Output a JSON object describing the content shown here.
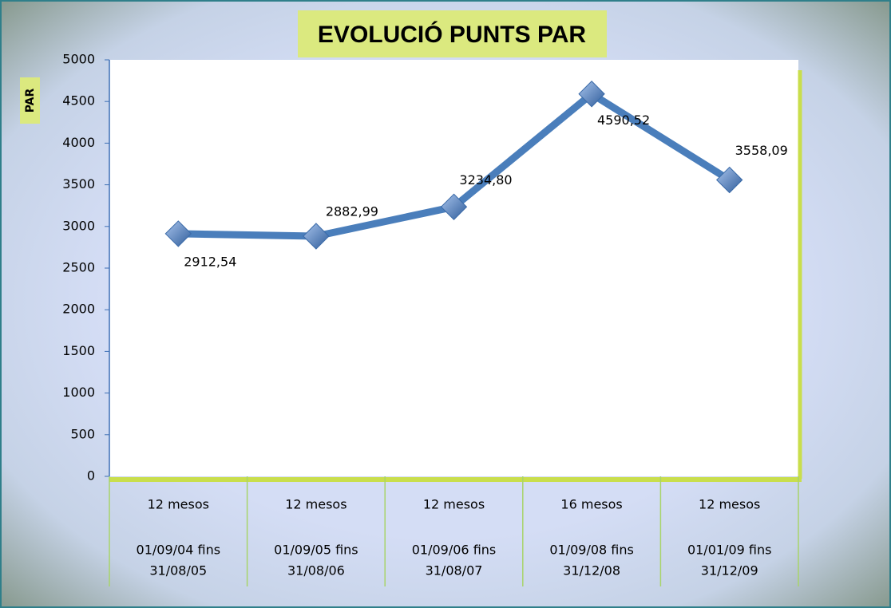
{
  "chart_data": {
    "type": "line",
    "title": "EVOLUCIÓ PUNTS PAR",
    "y_label": "PAR",
    "categories": [
      [
        "12 mesos",
        "01/09/04 fins",
        "31/08/05"
      ],
      [
        "12 mesos",
        "01/09/05 fins",
        "31/08/06"
      ],
      [
        "12 mesos",
        "01/09/06 fins",
        "31/08/07"
      ],
      [
        "16 mesos",
        "01/09/08 fins",
        "31/12/08"
      ],
      [
        "12 mesos",
        "01/01/09 fins",
        "31/12/09"
      ]
    ],
    "series": [
      {
        "name": "PAR",
        "color": "#4a7ebb",
        "values": [
          2912.54,
          2882.99,
          3234.8,
          4590.52,
          3558.09
        ],
        "value_labels": [
          "2912,54",
          "2882,99",
          "3234,80",
          "4590,52",
          "3558,09"
        ]
      }
    ],
    "ylim": [
      0,
      5000
    ],
    "yticks": [
      0,
      500,
      1000,
      1500,
      2000,
      2500,
      3000,
      3500,
      4000,
      4500,
      5000
    ]
  }
}
